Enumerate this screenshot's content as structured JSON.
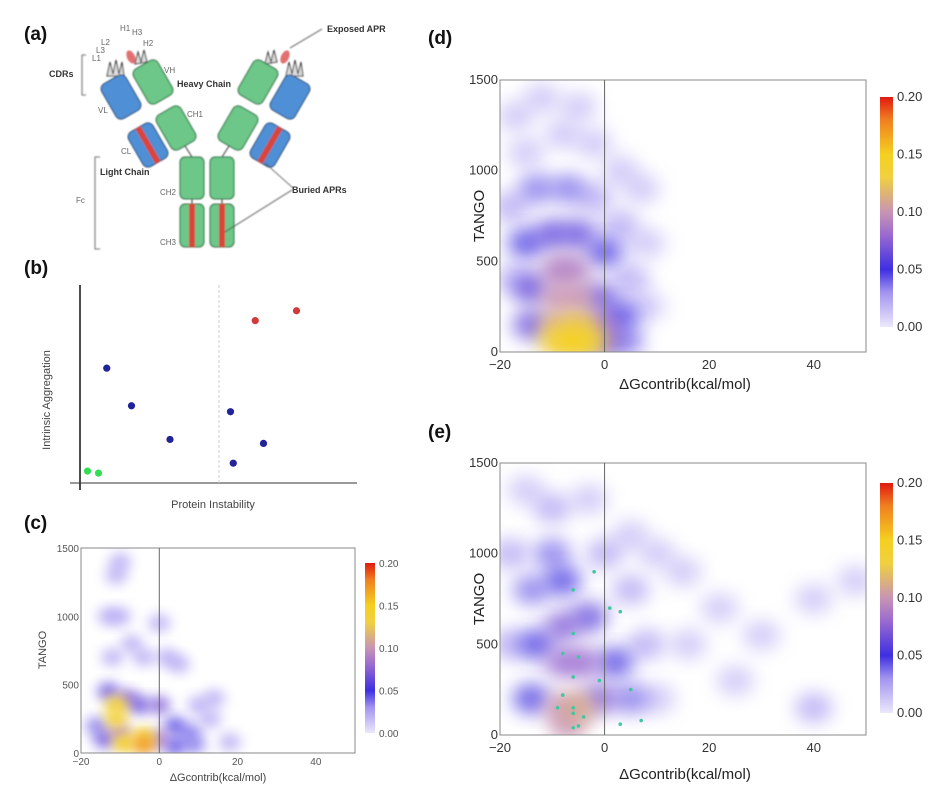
{
  "panels": {
    "a": {
      "label": "(a)",
      "annotations": {
        "exposed_apr": "Exposed APR",
        "heavy_chain": "Heavy Chain",
        "light_chain": "Light Chain",
        "cdrs": "CDRs",
        "buried_aprs": "Buried APRs",
        "fc": "Fc",
        "vh": "VH",
        "ch1": "CH1",
        "vl": "VL",
        "cl": "CL",
        "ch2": "CH2",
        "ch3": "CH3",
        "l1": "L1",
        "l2": "L2",
        "l3": "L3",
        "h1": "H1",
        "h2": "H2",
        "h3": "H3"
      },
      "colors": {
        "heavy": "#6cc788",
        "light": "#4f8fd6",
        "apr": "#d9453a",
        "cdr": "#cccccc"
      }
    },
    "b": {
      "label": "(b)"
    },
    "c": {
      "label": "(c)"
    },
    "d": {
      "label": "(d)"
    },
    "e": {
      "label": "(e)"
    }
  },
  "colormap": [
    {
      "v": 0.0,
      "c": "#ece8fb"
    },
    {
      "v": 0.03,
      "c": "#a394f0"
    },
    {
      "v": 0.05,
      "c": "#3d2fe0"
    },
    {
      "v": 0.08,
      "c": "#9a6ad0"
    },
    {
      "v": 0.1,
      "c": "#c894b4"
    },
    {
      "v": 0.13,
      "c": "#f0d040"
    },
    {
      "v": 0.15,
      "c": "#f5d020"
    },
    {
      "v": 0.18,
      "c": "#f08020"
    },
    {
      "v": 0.2,
      "c": "#e01a10"
    }
  ],
  "chart_data": [
    {
      "panel": "b",
      "type": "scatter",
      "xlabel": "Protein Instability",
      "ylabel": "Intrinsic Aggregation",
      "grid": false,
      "threshold_line": "vertical dashed gray line",
      "series": [
        {
          "color": "#d03a3a",
          "points": [
            [
              0.63,
              0.82
            ],
            [
              0.78,
              0.87
            ]
          ]
        },
        {
          "color": "#22229a",
          "points": [
            [
              0.09,
              0.58
            ],
            [
              0.18,
              0.39
            ],
            [
              0.32,
              0.22
            ],
            [
              0.54,
              0.36
            ],
            [
              0.66,
              0.2
            ],
            [
              0.55,
              0.1
            ]
          ]
        },
        {
          "color": "#33dd55",
          "points": [
            [
              0.02,
              0.06
            ],
            [
              0.06,
              0.05
            ]
          ]
        }
      ]
    },
    {
      "panel": "c",
      "type": "heatmap",
      "xlabel": "ΔGcontrib(kcal/mol)",
      "ylabel": "TANGO",
      "xlim": [
        -20,
        50
      ],
      "ylim": [
        0,
        1500
      ],
      "xticks": [
        "-20",
        "0",
        "20",
        "40"
      ],
      "yticks": [
        "0",
        "500",
        "1000",
        "1500"
      ],
      "colorbar": {
        "ticks": [
          "0.00",
          "0.05",
          "0.10",
          "0.15",
          "0.20"
        ],
        "range": [
          0,
          0.2
        ]
      },
      "density": [
        [
          -10,
          1400,
          0.03
        ],
        [
          -11,
          1300,
          0.03
        ],
        [
          -13,
          1000,
          0.03
        ],
        [
          -10,
          1000,
          0.03
        ],
        [
          0,
          950,
          0.03
        ],
        [
          -7,
          800,
          0.03
        ],
        [
          -12,
          700,
          0.03
        ],
        [
          -4,
          700,
          0.03
        ],
        [
          2,
          700,
          0.03
        ],
        [
          5,
          650,
          0.03
        ],
        [
          10,
          350,
          0.03
        ],
        [
          14,
          400,
          0.03
        ],
        [
          13,
          250,
          0.03
        ],
        [
          18,
          80,
          0.03
        ],
        [
          -16,
          200,
          0.04
        ],
        [
          8,
          150,
          0.04
        ],
        [
          -13,
          450,
          0.06
        ],
        [
          -5,
          350,
          0.06
        ],
        [
          -14,
          100,
          0.06
        ],
        [
          4,
          50,
          0.05
        ],
        [
          9,
          60,
          0.04
        ],
        [
          4,
          200,
          0.05
        ],
        [
          -8,
          400,
          0.07
        ],
        [
          0,
          350,
          0.07
        ],
        [
          0,
          100,
          0.08
        ],
        [
          -10,
          150,
          0.09
        ],
        [
          -11,
          350,
          0.14
        ],
        [
          -11,
          250,
          0.14
        ],
        [
          -4,
          120,
          0.14
        ],
        [
          -9,
          70,
          0.15
        ],
        [
          -4,
          60,
          0.17
        ]
      ]
    },
    {
      "panel": "d",
      "type": "heatmap",
      "xlabel": "ΔGcontrib(kcal/mol)",
      "ylabel": "TANGO",
      "xlim": [
        -20,
        50
      ],
      "ylim": [
        0,
        1500
      ],
      "xticks": [
        "-20",
        "0",
        "20",
        "40"
      ],
      "yticks": [
        "0",
        "500",
        "1000",
        "1500"
      ],
      "colorbar": {
        "ticks": [
          "0.00",
          "0.05",
          "0.10",
          "0.15",
          "0.20"
        ],
        "range": [
          0,
          0.2
        ]
      },
      "density": [
        [
          -17,
          1300,
          0.02
        ],
        [
          -12,
          1400,
          0.02
        ],
        [
          -5,
          1350,
          0.02
        ],
        [
          -15,
          1100,
          0.02
        ],
        [
          -8,
          1200,
          0.02
        ],
        [
          -2,
          1150,
          0.02
        ],
        [
          3,
          1000,
          0.02
        ],
        [
          7,
          900,
          0.02
        ],
        [
          8,
          600,
          0.02
        ],
        [
          8,
          250,
          0.02
        ],
        [
          -18,
          800,
          0.03
        ],
        [
          -2,
          850,
          0.03
        ],
        [
          3,
          700,
          0.03
        ],
        [
          5,
          400,
          0.03
        ],
        [
          -17,
          400,
          0.03
        ],
        [
          -13,
          900,
          0.04
        ],
        [
          -7,
          900,
          0.04
        ],
        [
          4,
          60,
          0.04
        ],
        [
          -15,
          600,
          0.05
        ],
        [
          0,
          550,
          0.05
        ],
        [
          3,
          200,
          0.05
        ],
        [
          -10,
          650,
          0.06
        ],
        [
          -5,
          650,
          0.06
        ],
        [
          -14,
          350,
          0.06
        ],
        [
          -1,
          300,
          0.06
        ],
        [
          -14,
          150,
          0.06
        ],
        [
          0,
          60,
          0.07
        ],
        [
          -1,
          150,
          0.08
        ],
        [
          -9,
          450,
          0.09
        ],
        [
          -6,
          450,
          0.09
        ],
        [
          -9,
          300,
          0.1
        ],
        [
          -5,
          300,
          0.1
        ],
        [
          -9,
          150,
          0.11
        ],
        [
          -5,
          150,
          0.12
        ],
        [
          -9,
          60,
          0.13
        ],
        [
          -3,
          60,
          0.13
        ],
        [
          -6,
          60,
          0.15
        ]
      ]
    },
    {
      "panel": "e",
      "type": "heatmap",
      "xlabel": "ΔGcontrib(kcal/mol)",
      "ylabel": "TANGO",
      "xlim": [
        -20,
        50
      ],
      "ylim": [
        0,
        1500
      ],
      "xticks": [
        "-20",
        "0",
        "20",
        "40"
      ],
      "yticks": [
        "0",
        "500",
        "1000",
        "1500"
      ],
      "colorbar": {
        "ticks": [
          "0.00",
          "0.05",
          "0.10",
          "0.15",
          "0.20"
        ],
        "range": [
          0,
          0.2
        ]
      },
      "density": [
        [
          -15,
          1350,
          0.02
        ],
        [
          -3,
          1300,
          0.02
        ],
        [
          5,
          1100,
          0.02
        ],
        [
          10,
          1000,
          0.02
        ],
        [
          15,
          900,
          0.02
        ],
        [
          22,
          700,
          0.02
        ],
        [
          30,
          550,
          0.02
        ],
        [
          40,
          750,
          0.02
        ],
        [
          48,
          850,
          0.02
        ],
        [
          25,
          300,
          0.02
        ],
        [
          10,
          200,
          0.02
        ],
        [
          16,
          500,
          0.02
        ],
        [
          40,
          150,
          0.03
        ],
        [
          -10,
          1250,
          0.03
        ],
        [
          -18,
          1000,
          0.03
        ],
        [
          -18,
          500,
          0.03
        ],
        [
          8,
          500,
          0.03
        ],
        [
          -10,
          1000,
          0.04
        ],
        [
          0,
          1000,
          0.03
        ],
        [
          5,
          800,
          0.03
        ],
        [
          5,
          200,
          0.04
        ],
        [
          -14,
          800,
          0.04
        ],
        [
          -13,
          500,
          0.05
        ],
        [
          2,
          400,
          0.05
        ],
        [
          -14,
          200,
          0.05
        ],
        [
          -8,
          850,
          0.05
        ],
        [
          -3,
          650,
          0.06
        ],
        [
          -8,
          600,
          0.07
        ],
        [
          -8,
          400,
          0.08
        ],
        [
          -4,
          400,
          0.08
        ],
        [
          -1,
          200,
          0.07
        ],
        [
          -8,
          150,
          0.1
        ],
        [
          -5,
          150,
          0.11
        ],
        [
          -7,
          60,
          0.1
        ]
      ],
      "overlay_points": {
        "color": "#3ec8a0",
        "points": [
          [
            -2,
            900
          ],
          [
            -6,
            800
          ],
          [
            1,
            700
          ],
          [
            3,
            680
          ],
          [
            -6,
            560
          ],
          [
            -8,
            450
          ],
          [
            -5,
            430
          ],
          [
            -1,
            300
          ],
          [
            -6,
            320
          ],
          [
            5,
            250
          ],
          [
            -8,
            220
          ],
          [
            -6,
            150
          ],
          [
            -9,
            150
          ],
          [
            -6,
            120
          ],
          [
            -4,
            100
          ],
          [
            3,
            60
          ],
          [
            7,
            80
          ],
          [
            -6,
            40
          ],
          [
            -5,
            50
          ]
        ]
      }
    }
  ]
}
